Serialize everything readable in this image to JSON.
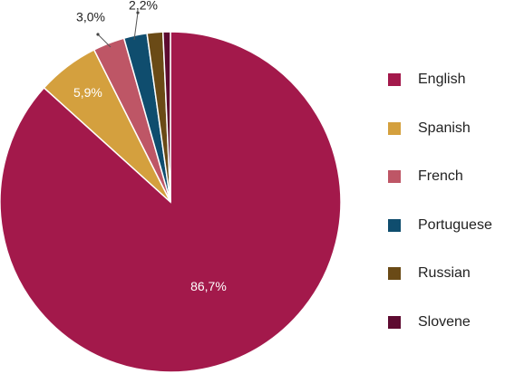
{
  "chart_data": {
    "type": "pie",
    "title": "",
    "categories": [
      "English",
      "Spanish",
      "French",
      "Portuguese",
      "Russian",
      "Slovene"
    ],
    "values": [
      86.7,
      5.9,
      3.0,
      2.2,
      1.5,
      0.7
    ],
    "colors": [
      "#A3194B",
      "#D4A03E",
      "#BE5666",
      "#0F4D6E",
      "#6A4A16",
      "#5E0B31"
    ],
    "data_labels": [
      "86,7%",
      "5,9%",
      "3,0%",
      "2,2%",
      "",
      ""
    ],
    "label_colors": [
      "#ffffff",
      "#ffffff",
      "#222222",
      "#222222",
      "",
      ""
    ],
    "legend_position": "right",
    "start_angle_deg": 0,
    "direction": "clockwise"
  }
}
